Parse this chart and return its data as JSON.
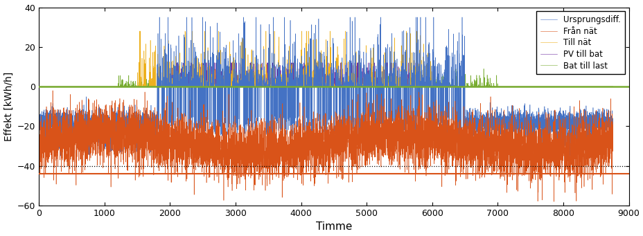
{
  "title": "",
  "xlabel": "Timme",
  "ylabel": "Effekt [kWh/h]",
  "xlim": [
    0,
    9000
  ],
  "ylim": [
    -60,
    40
  ],
  "yticks": [
    -60,
    -40,
    -20,
    0,
    20,
    40
  ],
  "xticks": [
    0,
    1000,
    2000,
    3000,
    4000,
    5000,
    6000,
    7000,
    8000,
    9000
  ],
  "colors": {
    "ursprungsdiff": "#4472C4",
    "fran_nat": "#D95319",
    "till_nat": "#EDB120",
    "pv_till_bat": "#7030A0",
    "bat_till_last": "#77AC30"
  },
  "legend_labels": [
    "Ursprungsdiff.",
    "Från nät",
    "Till nät",
    "PV till bat",
    "Bat till last"
  ],
  "hline_dotted_y": -40,
  "hline_solid_y": -44,
  "hline_green_y": 0,
  "seed": 42,
  "n_hours": 8760
}
